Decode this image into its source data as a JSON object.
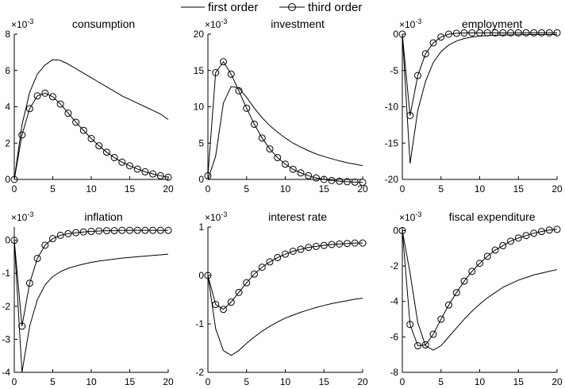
{
  "legend": {
    "first_order": "first order",
    "third_order": "third order",
    "placement": "top-center"
  },
  "colors": {
    "line": "#000000",
    "background": "#ffffff"
  },
  "chart_data": [
    {
      "type": "line",
      "title": "consumption",
      "exponent_label": "×10",
      "exponent_power": "-3",
      "x": [
        0,
        1,
        2,
        3,
        4,
        5,
        6,
        7,
        8,
        9,
        10,
        11,
        12,
        13,
        14,
        15,
        16,
        17,
        18,
        19,
        20
      ],
      "xlim": [
        0,
        20
      ],
      "ylim": [
        0,
        8
      ],
      "xticks": [
        0,
        5,
        10,
        15,
        20
      ],
      "yticks": [
        0,
        2,
        4,
        6,
        8
      ],
      "series": [
        {
          "name": "first order",
          "marker": "none",
          "values": [
            0,
            3.0,
            4.8,
            5.8,
            6.3,
            6.6,
            6.55,
            6.35,
            6.1,
            5.85,
            5.6,
            5.35,
            5.1,
            4.85,
            4.6,
            4.4,
            4.2,
            4.0,
            3.8,
            3.6,
            3.3
          ]
        },
        {
          "name": "third order",
          "marker": "circle",
          "values": [
            0,
            2.45,
            3.9,
            4.6,
            4.75,
            4.55,
            4.15,
            3.65,
            3.15,
            2.7,
            2.25,
            1.85,
            1.5,
            1.2,
            0.95,
            0.75,
            0.57,
            0.42,
            0.3,
            0.2,
            0.12
          ]
        }
      ]
    },
    {
      "type": "line",
      "title": "investment",
      "exponent_label": "×10",
      "exponent_power": "-3",
      "x": [
        0,
        1,
        2,
        3,
        4,
        5,
        6,
        7,
        8,
        9,
        10,
        11,
        12,
        13,
        14,
        15,
        16,
        17,
        18,
        19,
        20
      ],
      "xlim": [
        0,
        20
      ],
      "ylim": [
        0,
        20
      ],
      "xticks": [
        0,
        5,
        10,
        15,
        20
      ],
      "yticks": [
        0,
        5,
        10,
        15,
        20
      ],
      "series": [
        {
          "name": "first order",
          "marker": "none",
          "values": [
            0,
            3.2,
            10.5,
            12.8,
            12.6,
            11.3,
            9.8,
            8.5,
            7.4,
            6.5,
            5.7,
            5.0,
            4.45,
            3.95,
            3.5,
            3.15,
            2.85,
            2.55,
            2.3,
            2.1,
            1.9
          ]
        },
        {
          "name": "third order",
          "marker": "circle",
          "values": [
            0.5,
            14.7,
            16.2,
            14.5,
            12.2,
            9.8,
            7.6,
            5.7,
            4.2,
            3.0,
            2.1,
            1.4,
            0.9,
            0.5,
            0.2,
            0.0,
            -0.15,
            -0.25,
            -0.32,
            -0.37,
            -0.4
          ]
        }
      ]
    },
    {
      "type": "line",
      "title": "employment",
      "exponent_label": "×10",
      "exponent_power": "-3",
      "x": [
        0,
        1,
        2,
        3,
        4,
        5,
        6,
        7,
        8,
        9,
        10,
        11,
        12,
        13,
        14,
        15,
        16,
        17,
        18,
        19,
        20
      ],
      "xlim": [
        0,
        20
      ],
      "ylim": [
        -20,
        0
      ],
      "xticks": [
        0,
        5,
        10,
        15,
        20
      ],
      "yticks": [
        -20,
        -15,
        -10,
        -5,
        0
      ],
      "series": [
        {
          "name": "first order",
          "marker": "none",
          "values": [
            0,
            -17.8,
            -10.5,
            -6.5,
            -3.9,
            -2.4,
            -1.5,
            -0.95,
            -0.6,
            -0.4,
            -0.28,
            -0.2,
            -0.15,
            -0.12,
            -0.1,
            -0.08,
            -0.07,
            -0.06,
            -0.05,
            -0.05,
            -0.05
          ]
        },
        {
          "name": "third order",
          "marker": "circle",
          "values": [
            0,
            -11.2,
            -5.7,
            -2.7,
            -1.2,
            -0.4,
            0,
            0.12,
            0.16,
            0.18,
            0.18,
            0.18,
            0.18,
            0.18,
            0.18,
            0.18,
            0.18,
            0.18,
            0.18,
            0.18,
            0.18
          ]
        }
      ]
    },
    {
      "type": "line",
      "title": "inflation",
      "exponent_label": "×10",
      "exponent_power": "-3",
      "x": [
        0,
        1,
        2,
        3,
        4,
        5,
        6,
        7,
        8,
        9,
        10,
        11,
        12,
        13,
        14,
        15,
        16,
        17,
        18,
        19,
        20
      ],
      "xlim": [
        0,
        20
      ],
      "ylim": [
        -4,
        0.4
      ],
      "xticks": [
        0,
        5,
        10,
        15,
        20
      ],
      "yticks": [
        -4,
        -3,
        -2,
        -1,
        0
      ],
      "series": [
        {
          "name": "first order",
          "marker": "none",
          "values": [
            0,
            -4.0,
            -2.6,
            -1.8,
            -1.35,
            -1.1,
            -0.95,
            -0.85,
            -0.78,
            -0.72,
            -0.67,
            -0.63,
            -0.6,
            -0.57,
            -0.54,
            -0.52,
            -0.5,
            -0.48,
            -0.46,
            -0.44,
            -0.42
          ]
        },
        {
          "name": "third order",
          "marker": "circle",
          "values": [
            0,
            -2.6,
            -1.3,
            -0.55,
            -0.15,
            0.05,
            0.15,
            0.2,
            0.23,
            0.25,
            0.27,
            0.28,
            0.29,
            0.29,
            0.3,
            0.3,
            0.3,
            0.3,
            0.3,
            0.3,
            0.3
          ]
        }
      ]
    },
    {
      "type": "line",
      "title": "interest rate",
      "exponent_label": "×10",
      "exponent_power": "-3",
      "x": [
        0,
        1,
        2,
        3,
        4,
        5,
        6,
        7,
        8,
        9,
        10,
        11,
        12,
        13,
        14,
        15,
        16,
        17,
        18,
        19,
        20
      ],
      "xlim": [
        0,
        20
      ],
      "ylim": [
        -2,
        1
      ],
      "xticks": [
        0,
        5,
        10,
        15,
        20
      ],
      "yticks": [
        -2,
        -1,
        0,
        1
      ],
      "series": [
        {
          "name": "first order",
          "marker": "none",
          "values": [
            0,
            -1.1,
            -1.55,
            -1.65,
            -1.55,
            -1.4,
            -1.27,
            -1.15,
            -1.05,
            -0.96,
            -0.88,
            -0.82,
            -0.76,
            -0.71,
            -0.66,
            -0.62,
            -0.58,
            -0.55,
            -0.52,
            -0.49,
            -0.47
          ]
        },
        {
          "name": "third order",
          "marker": "circle",
          "values": [
            0,
            -0.6,
            -0.7,
            -0.55,
            -0.35,
            -0.15,
            0.03,
            0.17,
            0.28,
            0.37,
            0.44,
            0.5,
            0.54,
            0.58,
            0.6,
            0.62,
            0.64,
            0.65,
            0.66,
            0.67,
            0.67
          ]
        }
      ]
    },
    {
      "type": "line",
      "title": "fiscal expenditure",
      "exponent_label": "×10",
      "exponent_power": "-3",
      "x": [
        0,
        1,
        2,
        3,
        4,
        5,
        6,
        7,
        8,
        9,
        10,
        11,
        12,
        13,
        14,
        15,
        16,
        17,
        18,
        19,
        20
      ],
      "xlim": [
        0,
        20
      ],
      "ylim": [
        -8,
        0.2
      ],
      "xticks": [
        0,
        5,
        10,
        15,
        20
      ],
      "yticks": [
        -8,
        -6,
        -4,
        -2,
        0
      ],
      "series": [
        {
          "name": "first order",
          "marker": "none",
          "values": [
            0,
            -2.4,
            -5.2,
            -6.5,
            -6.75,
            -6.5,
            -6.0,
            -5.5,
            -5.0,
            -4.55,
            -4.15,
            -3.8,
            -3.5,
            -3.2,
            -3.0,
            -2.8,
            -2.65,
            -2.5,
            -2.4,
            -2.3,
            -2.2
          ]
        },
        {
          "name": "third order",
          "marker": "circle",
          "values": [
            0,
            -5.3,
            -6.5,
            -6.45,
            -5.85,
            -5.0,
            -4.2,
            -3.5,
            -2.85,
            -2.3,
            -1.85,
            -1.45,
            -1.1,
            -0.85,
            -0.6,
            -0.42,
            -0.28,
            -0.15,
            -0.05,
            0.03,
            0.07
          ]
        }
      ]
    }
  ]
}
